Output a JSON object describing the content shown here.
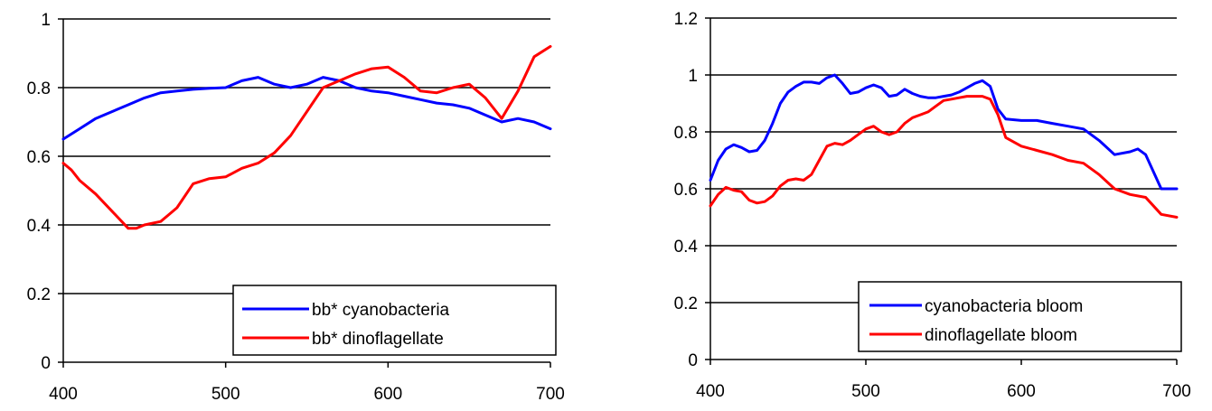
{
  "chart_data": [
    {
      "type": "line",
      "title": "",
      "xlabel": "",
      "ylabel": "",
      "xlim": [
        400,
        700
      ],
      "ylim": [
        0,
        1
      ],
      "x_ticks": [
        "400",
        "500",
        "600",
        "700"
      ],
      "y_ticks": [
        "0",
        "0.2",
        "0.4",
        "0.6",
        "0.8",
        "1"
      ],
      "grid": "horizontal",
      "legend_position": "bottom-right",
      "series": [
        {
          "name": "bb*  cyanobacteria",
          "color": "#0000ff",
          "x": [
            400,
            410,
            420,
            430,
            440,
            450,
            460,
            470,
            480,
            490,
            500,
            510,
            520,
            530,
            540,
            550,
            560,
            570,
            580,
            590,
            600,
            610,
            620,
            630,
            640,
            650,
            660,
            670,
            680,
            690,
            700
          ],
          "y": [
            0.65,
            0.68,
            0.71,
            0.73,
            0.75,
            0.77,
            0.785,
            0.79,
            0.795,
            0.798,
            0.8,
            0.82,
            0.83,
            0.81,
            0.8,
            0.81,
            0.83,
            0.82,
            0.8,
            0.79,
            0.785,
            0.775,
            0.765,
            0.755,
            0.75,
            0.74,
            0.72,
            0.7,
            0.71,
            0.7,
            0.68
          ]
        },
        {
          "name": "bb*  dinoflagellate",
          "color": "#ff0000",
          "x": [
            400,
            405,
            410,
            420,
            430,
            440,
            445,
            450,
            460,
            465,
            470,
            480,
            490,
            500,
            510,
            520,
            530,
            540,
            550,
            560,
            570,
            580,
            590,
            600,
            610,
            620,
            630,
            640,
            650,
            660,
            670,
            680,
            690,
            700
          ],
          "y": [
            0.58,
            0.56,
            0.53,
            0.49,
            0.44,
            0.39,
            0.39,
            0.4,
            0.41,
            0.43,
            0.45,
            0.52,
            0.535,
            0.54,
            0.565,
            0.58,
            0.61,
            0.66,
            0.73,
            0.8,
            0.82,
            0.84,
            0.855,
            0.86,
            0.83,
            0.79,
            0.785,
            0.8,
            0.81,
            0.77,
            0.71,
            0.79,
            0.89,
            0.92
          ]
        }
      ]
    },
    {
      "type": "line",
      "title": "",
      "xlabel": "",
      "ylabel": "",
      "xlim": [
        400,
        700
      ],
      "ylim": [
        0,
        1.2
      ],
      "x_ticks": [
        "400",
        "500",
        "600",
        "700"
      ],
      "y_ticks": [
        "0",
        "0.2",
        "0.4",
        "0.6",
        "0.8",
        "1",
        "1.2"
      ],
      "grid": "horizontal",
      "legend_position": "bottom-right",
      "series": [
        {
          "name": "cyanobacteria bloom",
          "color": "#0000ff",
          "x": [
            400,
            405,
            410,
            415,
            420,
            425,
            430,
            435,
            440,
            445,
            450,
            455,
            460,
            465,
            470,
            475,
            480,
            485,
            490,
            495,
            500,
            505,
            510,
            515,
            520,
            525,
            530,
            535,
            540,
            545,
            550,
            555,
            560,
            565,
            570,
            575,
            580,
            585,
            590,
            600,
            610,
            620,
            630,
            640,
            650,
            660,
            670,
            675,
            680,
            690,
            700
          ],
          "y": [
            0.63,
            0.7,
            0.74,
            0.755,
            0.745,
            0.73,
            0.735,
            0.77,
            0.83,
            0.9,
            0.94,
            0.96,
            0.975,
            0.975,
            0.97,
            0.99,
            1.0,
            0.97,
            0.935,
            0.94,
            0.955,
            0.965,
            0.955,
            0.925,
            0.93,
            0.95,
            0.935,
            0.925,
            0.92,
            0.92,
            0.925,
            0.93,
            0.94,
            0.955,
            0.97,
            0.98,
            0.96,
            0.88,
            0.845,
            0.84,
            0.84,
            0.83,
            0.82,
            0.81,
            0.77,
            0.72,
            0.73,
            0.74,
            0.72,
            0.6,
            0.6
          ]
        },
        {
          "name": "dinoflagellate bloom",
          "color": "#ff0000",
          "x": [
            400,
            405,
            410,
            415,
            420,
            425,
            430,
            435,
            440,
            445,
            450,
            455,
            460,
            465,
            470,
            475,
            480,
            485,
            490,
            495,
            500,
            505,
            510,
            515,
            520,
            525,
            530,
            535,
            540,
            545,
            550,
            555,
            560,
            565,
            570,
            575,
            580,
            585,
            590,
            600,
            610,
            620,
            630,
            640,
            650,
            660,
            670,
            680,
            690,
            700
          ],
          "y": [
            0.54,
            0.58,
            0.605,
            0.595,
            0.59,
            0.56,
            0.55,
            0.555,
            0.575,
            0.61,
            0.63,
            0.635,
            0.63,
            0.65,
            0.7,
            0.75,
            0.76,
            0.755,
            0.77,
            0.79,
            0.81,
            0.82,
            0.8,
            0.79,
            0.8,
            0.83,
            0.85,
            0.86,
            0.87,
            0.89,
            0.91,
            0.915,
            0.92,
            0.925,
            0.925,
            0.925,
            0.915,
            0.86,
            0.78,
            0.75,
            0.735,
            0.72,
            0.7,
            0.69,
            0.65,
            0.6,
            0.58,
            0.57,
            0.51,
            0.5
          ]
        }
      ]
    }
  ]
}
